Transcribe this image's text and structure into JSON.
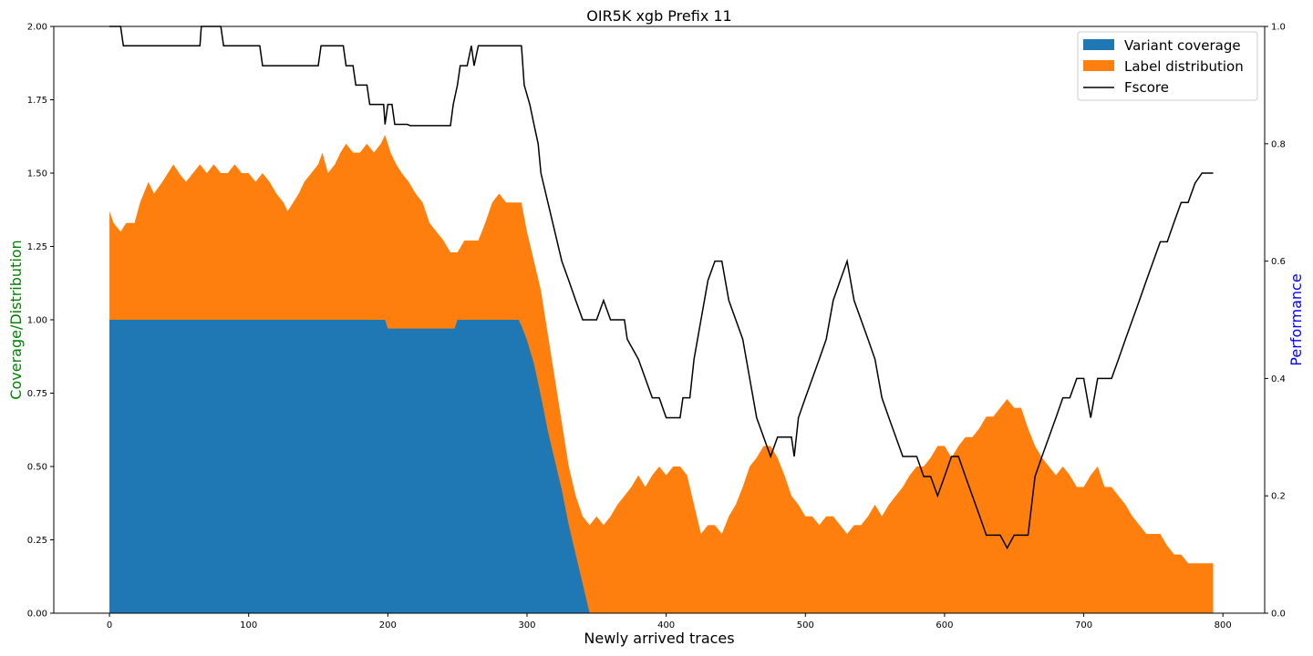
{
  "chart_data": {
    "type": "area",
    "title": "OIR5K xgb Prefix 11",
    "xlabel": "Newly arrived traces",
    "ylabel_left": "Coverage/Distribution",
    "ylabel_right": "Performance",
    "xlim": [
      -40,
      830
    ],
    "ylim_left": [
      0,
      2.0
    ],
    "ylim_right": [
      0,
      1.0
    ],
    "x_ticks": [
      "0",
      "100",
      "200",
      "300",
      "400",
      "500",
      "600",
      "700",
      "800"
    ],
    "y_ticks_left": [
      "0.00",
      "0.25",
      "0.50",
      "0.75",
      "1.00",
      "1.25",
      "1.50",
      "1.75",
      "2.00"
    ],
    "y_ticks_right": [
      "0.0",
      "0.2",
      "0.4",
      "0.6",
      "0.8",
      "1.0"
    ],
    "legend_position": "top-right",
    "colors": {
      "variant_coverage": "#1f77b4",
      "label_distribution": "#ff7f0e",
      "fscore": "#000000",
      "left_label": "#008000",
      "right_label": "#0000ff"
    },
    "series": [
      {
        "name": "Variant coverage",
        "kind": "stacked-area-bottom",
        "points": [
          [
            0,
            1.0
          ],
          [
            198,
            1.0
          ],
          [
            200,
            0.97
          ],
          [
            248,
            0.97
          ],
          [
            250,
            1.0
          ],
          [
            294,
            1.0
          ],
          [
            296,
            0.98
          ],
          [
            300,
            0.93
          ],
          [
            305,
            0.85
          ],
          [
            310,
            0.74
          ],
          [
            315,
            0.62
          ],
          [
            320,
            0.52
          ],
          [
            325,
            0.42
          ],
          [
            330,
            0.3
          ],
          [
            335,
            0.2
          ],
          [
            340,
            0.1
          ],
          [
            345,
            0.0
          ],
          [
            793,
            0.0
          ]
        ]
      },
      {
        "name": "Label distribution",
        "kind": "stacked-area-total",
        "points": [
          [
            0,
            1.37
          ],
          [
            3,
            1.33
          ],
          [
            8,
            1.3
          ],
          [
            12,
            1.33
          ],
          [
            18,
            1.33
          ],
          [
            22,
            1.4
          ],
          [
            28,
            1.47
          ],
          [
            32,
            1.43
          ],
          [
            38,
            1.47
          ],
          [
            42,
            1.5
          ],
          [
            46,
            1.53
          ],
          [
            50,
            1.5
          ],
          [
            55,
            1.47
          ],
          [
            60,
            1.5
          ],
          [
            65,
            1.53
          ],
          [
            70,
            1.5
          ],
          [
            75,
            1.53
          ],
          [
            80,
            1.5
          ],
          [
            85,
            1.5
          ],
          [
            90,
            1.53
          ],
          [
            95,
            1.5
          ],
          [
            100,
            1.5
          ],
          [
            105,
            1.47
          ],
          [
            110,
            1.5
          ],
          [
            115,
            1.47
          ],
          [
            120,
            1.43
          ],
          [
            125,
            1.4
          ],
          [
            128,
            1.37
          ],
          [
            132,
            1.4
          ],
          [
            136,
            1.43
          ],
          [
            140,
            1.47
          ],
          [
            145,
            1.5
          ],
          [
            150,
            1.53
          ],
          [
            153,
            1.57
          ],
          [
            157,
            1.5
          ],
          [
            162,
            1.53
          ],
          [
            166,
            1.57
          ],
          [
            170,
            1.6
          ],
          [
            175,
            1.57
          ],
          [
            180,
            1.57
          ],
          [
            185,
            1.6
          ],
          [
            190,
            1.57
          ],
          [
            195,
            1.6
          ],
          [
            198,
            1.63
          ],
          [
            202,
            1.57
          ],
          [
            206,
            1.53
          ],
          [
            210,
            1.5
          ],
          [
            215,
            1.47
          ],
          [
            220,
            1.43
          ],
          [
            225,
            1.4
          ],
          [
            230,
            1.33
          ],
          [
            235,
            1.3
          ],
          [
            240,
            1.27
          ],
          [
            245,
            1.23
          ],
          [
            250,
            1.23
          ],
          [
            255,
            1.27
          ],
          [
            260,
            1.27
          ],
          [
            265,
            1.27
          ],
          [
            270,
            1.33
          ],
          [
            275,
            1.4
          ],
          [
            280,
            1.43
          ],
          [
            285,
            1.4
          ],
          [
            290,
            1.4
          ],
          [
            296,
            1.4
          ],
          [
            300,
            1.3
          ],
          [
            305,
            1.2
          ],
          [
            310,
            1.1
          ],
          [
            315,
            0.95
          ],
          [
            320,
            0.8
          ],
          [
            325,
            0.65
          ],
          [
            330,
            0.5
          ],
          [
            335,
            0.4
          ],
          [
            340,
            0.33
          ],
          [
            345,
            0.3
          ],
          [
            350,
            0.33
          ],
          [
            355,
            0.3
          ],
          [
            360,
            0.33
          ],
          [
            365,
            0.37
          ],
          [
            370,
            0.4
          ],
          [
            375,
            0.43
          ],
          [
            380,
            0.47
          ],
          [
            385,
            0.43
          ],
          [
            390,
            0.47
          ],
          [
            395,
            0.5
          ],
          [
            400,
            0.47
          ],
          [
            405,
            0.5
          ],
          [
            410,
            0.5
          ],
          [
            415,
            0.47
          ],
          [
            420,
            0.37
          ],
          [
            425,
            0.27
          ],
          [
            430,
            0.3
          ],
          [
            435,
            0.3
          ],
          [
            440,
            0.27
          ],
          [
            445,
            0.33
          ],
          [
            450,
            0.37
          ],
          [
            455,
            0.43
          ],
          [
            460,
            0.5
          ],
          [
            465,
            0.53
          ],
          [
            470,
            0.57
          ],
          [
            475,
            0.57
          ],
          [
            480,
            0.53
          ],
          [
            485,
            0.47
          ],
          [
            490,
            0.4
          ],
          [
            495,
            0.37
          ],
          [
            500,
            0.33
          ],
          [
            505,
            0.33
          ],
          [
            510,
            0.3
          ],
          [
            515,
            0.33
          ],
          [
            520,
            0.33
          ],
          [
            525,
            0.3
          ],
          [
            530,
            0.27
          ],
          [
            535,
            0.3
          ],
          [
            540,
            0.3
          ],
          [
            545,
            0.33
          ],
          [
            550,
            0.37
          ],
          [
            555,
            0.33
          ],
          [
            560,
            0.37
          ],
          [
            565,
            0.4
          ],
          [
            570,
            0.43
          ],
          [
            575,
            0.47
          ],
          [
            580,
            0.5
          ],
          [
            585,
            0.5
          ],
          [
            590,
            0.53
          ],
          [
            595,
            0.57
          ],
          [
            600,
            0.57
          ],
          [
            605,
            0.53
          ],
          [
            610,
            0.57
          ],
          [
            615,
            0.6
          ],
          [
            620,
            0.6
          ],
          [
            625,
            0.63
          ],
          [
            630,
            0.67
          ],
          [
            635,
            0.67
          ],
          [
            640,
            0.7
          ],
          [
            645,
            0.73
          ],
          [
            650,
            0.7
          ],
          [
            655,
            0.7
          ],
          [
            660,
            0.63
          ],
          [
            665,
            0.57
          ],
          [
            670,
            0.53
          ],
          [
            675,
            0.5
          ],
          [
            680,
            0.47
          ],
          [
            685,
            0.5
          ],
          [
            690,
            0.47
          ],
          [
            695,
            0.43
          ],
          [
            700,
            0.43
          ],
          [
            705,
            0.47
          ],
          [
            710,
            0.5
          ],
          [
            715,
            0.43
          ],
          [
            720,
            0.43
          ],
          [
            725,
            0.4
          ],
          [
            730,
            0.37
          ],
          [
            735,
            0.33
          ],
          [
            740,
            0.3
          ],
          [
            745,
            0.27
          ],
          [
            750,
            0.27
          ],
          [
            755,
            0.27
          ],
          [
            760,
            0.23
          ],
          [
            765,
            0.2
          ],
          [
            770,
            0.2
          ],
          [
            775,
            0.17
          ],
          [
            780,
            0.17
          ],
          [
            793,
            0.17
          ]
        ]
      },
      {
        "name": "Fscore",
        "kind": "line-right-axis",
        "points": [
          [
            0,
            1.0
          ],
          [
            8,
            1.0
          ],
          [
            10,
            0.967
          ],
          [
            65,
            0.967
          ],
          [
            66,
            1.0
          ],
          [
            80,
            1.0
          ],
          [
            82,
            0.967
          ],
          [
            108,
            0.967
          ],
          [
            110,
            0.933
          ],
          [
            150,
            0.933
          ],
          [
            152,
            0.967
          ],
          [
            168,
            0.967
          ],
          [
            170,
            0.933
          ],
          [
            175,
            0.933
          ],
          [
            177,
            0.9
          ],
          [
            185,
            0.9
          ],
          [
            187,
            0.867
          ],
          [
            197,
            0.867
          ],
          [
            198,
            0.833
          ],
          [
            200,
            0.867
          ],
          [
            203,
            0.867
          ],
          [
            205,
            0.833
          ],
          [
            214,
            0.833
          ],
          [
            216,
            0.831
          ],
          [
            245,
            0.831
          ],
          [
            247,
            0.867
          ],
          [
            250,
            0.9
          ],
          [
            252,
            0.933
          ],
          [
            257,
            0.933
          ],
          [
            260,
            0.967
          ],
          [
            262,
            0.933
          ],
          [
            265,
            0.967
          ],
          [
            296,
            0.967
          ],
          [
            298,
            0.9
          ],
          [
            302,
            0.867
          ],
          [
            305,
            0.833
          ],
          [
            308,
            0.8
          ],
          [
            310,
            0.75
          ],
          [
            315,
            0.7
          ],
          [
            320,
            0.65
          ],
          [
            325,
            0.6
          ],
          [
            330,
            0.567
          ],
          [
            335,
            0.533
          ],
          [
            340,
            0.5
          ],
          [
            350,
            0.5
          ],
          [
            355,
            0.533
          ],
          [
            360,
            0.5
          ],
          [
            370,
            0.5
          ],
          [
            372,
            0.467
          ],
          [
            380,
            0.433
          ],
          [
            385,
            0.4
          ],
          [
            390,
            0.367
          ],
          [
            395,
            0.367
          ],
          [
            400,
            0.333
          ],
          [
            410,
            0.333
          ],
          [
            412,
            0.367
          ],
          [
            417,
            0.367
          ],
          [
            420,
            0.433
          ],
          [
            425,
            0.5
          ],
          [
            430,
            0.567
          ],
          [
            435,
            0.6
          ],
          [
            440,
            0.6
          ],
          [
            445,
            0.533
          ],
          [
            450,
            0.5
          ],
          [
            455,
            0.467
          ],
          [
            460,
            0.4
          ],
          [
            465,
            0.333
          ],
          [
            470,
            0.3
          ],
          [
            475,
            0.267
          ],
          [
            480,
            0.3
          ],
          [
            490,
            0.3
          ],
          [
            492,
            0.267
          ],
          [
            495,
            0.333
          ],
          [
            500,
            0.367
          ],
          [
            505,
            0.4
          ],
          [
            510,
            0.433
          ],
          [
            515,
            0.467
          ],
          [
            520,
            0.533
          ],
          [
            525,
            0.567
          ],
          [
            530,
            0.6
          ],
          [
            535,
            0.533
          ],
          [
            540,
            0.5
          ],
          [
            545,
            0.467
          ],
          [
            550,
            0.433
          ],
          [
            555,
            0.367
          ],
          [
            560,
            0.333
          ],
          [
            565,
            0.3
          ],
          [
            570,
            0.267
          ],
          [
            575,
            0.267
          ],
          [
            580,
            0.267
          ],
          [
            585,
            0.233
          ],
          [
            590,
            0.233
          ],
          [
            595,
            0.2
          ],
          [
            600,
            0.233
          ],
          [
            605,
            0.267
          ],
          [
            610,
            0.267
          ],
          [
            615,
            0.233
          ],
          [
            620,
            0.2
          ],
          [
            625,
            0.167
          ],
          [
            630,
            0.133
          ],
          [
            635,
            0.133
          ],
          [
            640,
            0.133
          ],
          [
            645,
            0.111
          ],
          [
            650,
            0.133
          ],
          [
            660,
            0.133
          ],
          [
            665,
            0.233
          ],
          [
            670,
            0.267
          ],
          [
            675,
            0.3
          ],
          [
            680,
            0.333
          ],
          [
            685,
            0.367
          ],
          [
            690,
            0.367
          ],
          [
            695,
            0.4
          ],
          [
            700,
            0.4
          ],
          [
            705,
            0.333
          ],
          [
            710,
            0.4
          ],
          [
            715,
            0.4
          ],
          [
            720,
            0.4
          ],
          [
            725,
            0.433
          ],
          [
            730,
            0.467
          ],
          [
            735,
            0.5
          ],
          [
            740,
            0.533
          ],
          [
            745,
            0.567
          ],
          [
            750,
            0.6
          ],
          [
            755,
            0.633
          ],
          [
            760,
            0.633
          ],
          [
            765,
            0.667
          ],
          [
            770,
            0.7
          ],
          [
            775,
            0.7
          ],
          [
            780,
            0.733
          ],
          [
            785,
            0.75
          ],
          [
            793,
            0.75
          ]
        ]
      }
    ]
  }
}
